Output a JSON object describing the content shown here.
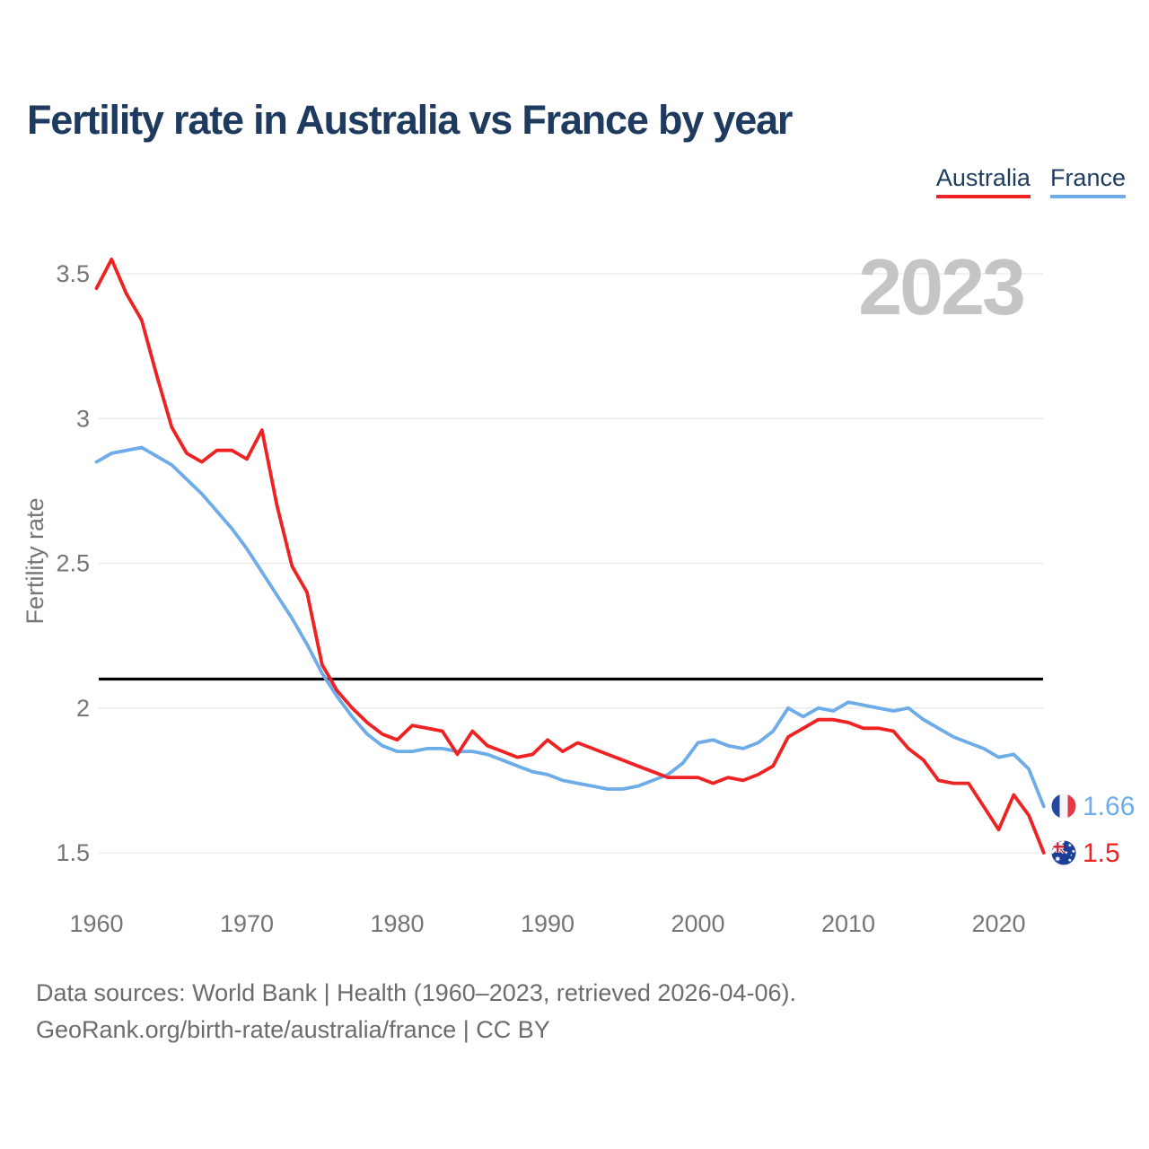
{
  "title": "Fertility rate in Australia vs France by year",
  "watermark": "2023",
  "legend": {
    "items": [
      {
        "label": "Australia",
        "color": "#ee2222"
      },
      {
        "label": "France",
        "color": "#6dace8"
      }
    ]
  },
  "y_axis": {
    "label": "Fertility rate",
    "ticks": [
      "3.5",
      "3",
      "2.5",
      "2",
      "1.5"
    ],
    "tick_values": [
      3.5,
      3.0,
      2.5,
      2.0,
      1.5
    ]
  },
  "x_axis": {
    "ticks": [
      "1960",
      "1970",
      "1980",
      "1990",
      "2000",
      "2010",
      "2020"
    ],
    "tick_values": [
      1960,
      1970,
      1980,
      1990,
      2000,
      2010,
      2020
    ]
  },
  "reference_line": {
    "value": 2.1,
    "color": "#000000"
  },
  "end_labels": [
    {
      "series": "France",
      "value": "1.66",
      "flag": "france-flag-icon",
      "color": "#6dace8"
    },
    {
      "series": "Australia",
      "value": "1.5",
      "flag": "australia-flag-icon",
      "color": "#ee2222"
    }
  ],
  "footer": {
    "line1": "Data sources: World Bank | Health (1960–2023, retrieved 2026-04-06).",
    "line2": "GeoRank.org/birth-rate/australia/france | CC BY"
  },
  "colors": {
    "australia_line": "#ee2222",
    "france_line": "#6dace8",
    "grid": "#e9e9e9",
    "axis_text": "#757575",
    "watermark": "#c5c5c5",
    "title_text": "#1e3a5f",
    "footer_text": "#6c6c6c",
    "reference": "#000000"
  },
  "chart_data": {
    "type": "line",
    "title": "Fertility rate in Australia vs France by year",
    "xlabel": "",
    "ylabel": "Fertility rate",
    "xlim": [
      1960,
      2023
    ],
    "ylim": [
      1.4,
      3.6
    ],
    "grid": "horizontal",
    "legend_position": "top-right",
    "annotations": {
      "replacement_fertility_line": 2.1,
      "watermark": "2023",
      "end_value_france": 1.66,
      "end_value_australia": 1.5
    },
    "x": [
      1960,
      1961,
      1962,
      1963,
      1964,
      1965,
      1966,
      1967,
      1968,
      1969,
      1970,
      1971,
      1972,
      1973,
      1974,
      1975,
      1976,
      1977,
      1978,
      1979,
      1980,
      1981,
      1982,
      1983,
      1984,
      1985,
      1986,
      1987,
      1988,
      1989,
      1990,
      1991,
      1992,
      1993,
      1994,
      1995,
      1996,
      1997,
      1998,
      1999,
      2000,
      2001,
      2002,
      2003,
      2004,
      2005,
      2006,
      2007,
      2008,
      2009,
      2010,
      2011,
      2012,
      2013,
      2014,
      2015,
      2016,
      2017,
      2018,
      2019,
      2020,
      2021,
      2022,
      2023
    ],
    "series": [
      {
        "name": "Australia",
        "color": "#ee2222",
        "values": [
          3.45,
          3.55,
          3.43,
          3.34,
          3.15,
          2.97,
          2.88,
          2.85,
          2.89,
          2.89,
          2.86,
          2.96,
          2.7,
          2.49,
          2.4,
          2.15,
          2.06,
          2.0,
          1.95,
          1.91,
          1.89,
          1.94,
          1.93,
          1.92,
          1.84,
          1.92,
          1.87,
          1.85,
          1.83,
          1.84,
          1.89,
          1.85,
          1.88,
          1.86,
          1.84,
          1.82,
          1.8,
          1.78,
          1.76,
          1.76,
          1.76,
          1.74,
          1.76,
          1.75,
          1.77,
          1.8,
          1.9,
          1.93,
          1.96,
          1.96,
          1.95,
          1.93,
          1.93,
          1.92,
          1.86,
          1.82,
          1.75,
          1.74,
          1.74,
          1.66,
          1.58,
          1.7,
          1.63,
          1.5
        ]
      },
      {
        "name": "France",
        "color": "#6dace8",
        "values": [
          2.85,
          2.88,
          2.89,
          2.9,
          2.87,
          2.84,
          2.79,
          2.74,
          2.68,
          2.62,
          2.55,
          2.47,
          2.39,
          2.31,
          2.22,
          2.12,
          2.04,
          1.97,
          1.91,
          1.87,
          1.85,
          1.85,
          1.86,
          1.86,
          1.85,
          1.85,
          1.84,
          1.82,
          1.8,
          1.78,
          1.77,
          1.75,
          1.74,
          1.73,
          1.72,
          1.72,
          1.73,
          1.75,
          1.77,
          1.81,
          1.88,
          1.89,
          1.87,
          1.86,
          1.88,
          1.92,
          2.0,
          1.97,
          2.0,
          1.99,
          2.02,
          2.01,
          2.0,
          1.99,
          2.0,
          1.96,
          1.93,
          1.9,
          1.88,
          1.86,
          1.83,
          1.84,
          1.79,
          1.66
        ]
      }
    ]
  }
}
